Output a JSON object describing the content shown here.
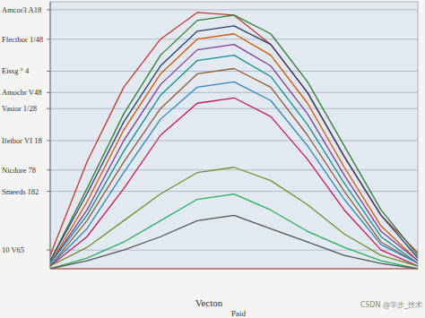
{
  "chart_data": {
    "type": "line",
    "x_label": "Vecton",
    "annotations": [
      "Paid",
      "CSDN @学步_技术"
    ],
    "x": [
      0,
      1,
      2,
      3,
      4,
      5,
      6,
      7,
      8,
      9,
      10
    ],
    "xlim": [
      0,
      10
    ],
    "ylim": [
      0,
      100
    ],
    "yticks": [
      {
        "value": 97,
        "label": "Amcor3 A18"
      },
      {
        "value": 86,
        "label": "Ffectbor 1/48"
      },
      {
        "value": 74,
        "label": "Eissg ° 4"
      },
      {
        "value": 66,
        "label": "Amocbr V48"
      },
      {
        "value": 60,
        "label": "Vasior 1/28"
      },
      {
        "value": 48,
        "label": "Ifetbor VI 18"
      },
      {
        "value": 37,
        "label": "Nicdore 78"
      },
      {
        "value": 29,
        "label": "Smeeds 182"
      },
      {
        "value": 7,
        "label": "10 V65"
      }
    ],
    "grid": true,
    "tick_labels": "y",
    "line_style": "solid",
    "marker": "none",
    "series": [
      {
        "color": "#c0392b",
        "values": [
          5,
          40,
          68,
          86,
          96,
          95,
          84,
          66,
          42,
          20,
          6
        ]
      },
      {
        "color": "#2e7d32",
        "values": [
          3,
          30,
          58,
          80,
          93,
          95,
          88,
          70,
          46,
          22,
          5
        ]
      },
      {
        "color": "#2c3e70",
        "values": [
          3,
          28,
          55,
          76,
          89,
          91,
          84,
          66,
          42,
          20,
          4
        ]
      },
      {
        "color": "#d35400",
        "values": [
          2,
          25,
          52,
          73,
          86,
          88,
          80,
          62,
          38,
          16,
          3
        ]
      },
      {
        "color": "#7d3c98",
        "values": [
          2,
          22,
          48,
          69,
          82,
          84,
          76,
          58,
          35,
          14,
          3
        ]
      },
      {
        "color": "#138d90",
        "values": [
          2,
          20,
          44,
          65,
          78,
          80,
          72,
          54,
          32,
          12,
          2
        ]
      },
      {
        "color": "#8e5b3a",
        "values": [
          1,
          18,
          40,
          60,
          73,
          75,
          68,
          50,
          29,
          10,
          2
        ]
      },
      {
        "color": "#2e86c1",
        "values": [
          1,
          15,
          36,
          56,
          68,
          70,
          63,
          46,
          26,
          9,
          2
        ]
      },
      {
        "color": "#c2185b",
        "values": [
          1,
          12,
          30,
          50,
          62,
          64,
          57,
          41,
          22,
          7,
          1
        ]
      },
      {
        "color": "#7a8b2e",
        "values": [
          1,
          8,
          18,
          28,
          36,
          38,
          33,
          24,
          13,
          5,
          1
        ]
      },
      {
        "color": "#27ae60",
        "values": [
          0,
          4,
          10,
          18,
          26,
          28,
          22,
          14,
          8,
          3,
          0
        ]
      },
      {
        "color": "#555555",
        "values": [
          0,
          3,
          7,
          12,
          18,
          20,
          15,
          10,
          5,
          2,
          0
        ]
      }
    ]
  }
}
